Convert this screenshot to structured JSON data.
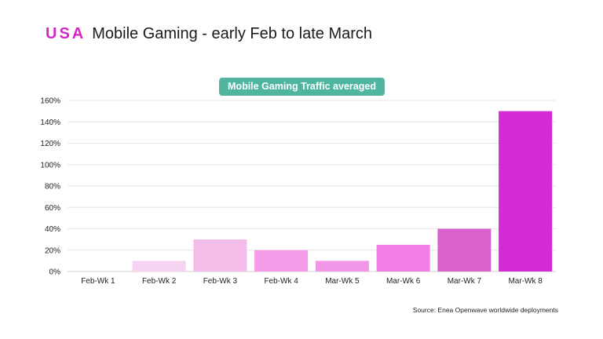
{
  "header": {
    "country": "USA",
    "title": "Mobile Gaming - early Feb to late March"
  },
  "source": "Source: Enea Openwave worldwide deployments",
  "colors": {
    "country": "#d726c8",
    "badge": "#4fb59f"
  },
  "chart_data": {
    "type": "bar",
    "title": "Mobile Gaming Traffic averaged",
    "categories": [
      "Feb-Wk 1",
      "Feb-Wk 2",
      "Feb-Wk 3",
      "Feb-Wk 4",
      "Mar-Wk 5",
      "Mar-Wk 6",
      "Mar-Wk 7",
      "Mar-Wk 8"
    ],
    "values": [
      0,
      10,
      30,
      20,
      10,
      25,
      40,
      150
    ],
    "bar_colors": [
      "#f8dcf3",
      "#f6d3f1",
      "#f3bde9",
      "#f39be6",
      "#f296e8",
      "#f27fe5",
      "#d861cc",
      "#d42bd6"
    ],
    "ylim": [
      0,
      160
    ],
    "yticks": [
      0,
      20,
      40,
      60,
      80,
      100,
      120,
      140,
      160
    ],
    "ytick_labels": [
      "0%",
      "20%",
      "40%",
      "60%",
      "80%",
      "100%",
      "120%",
      "140%",
      "160%"
    ],
    "xlabel": "",
    "ylabel": "",
    "grid": true,
    "legend": "none"
  }
}
